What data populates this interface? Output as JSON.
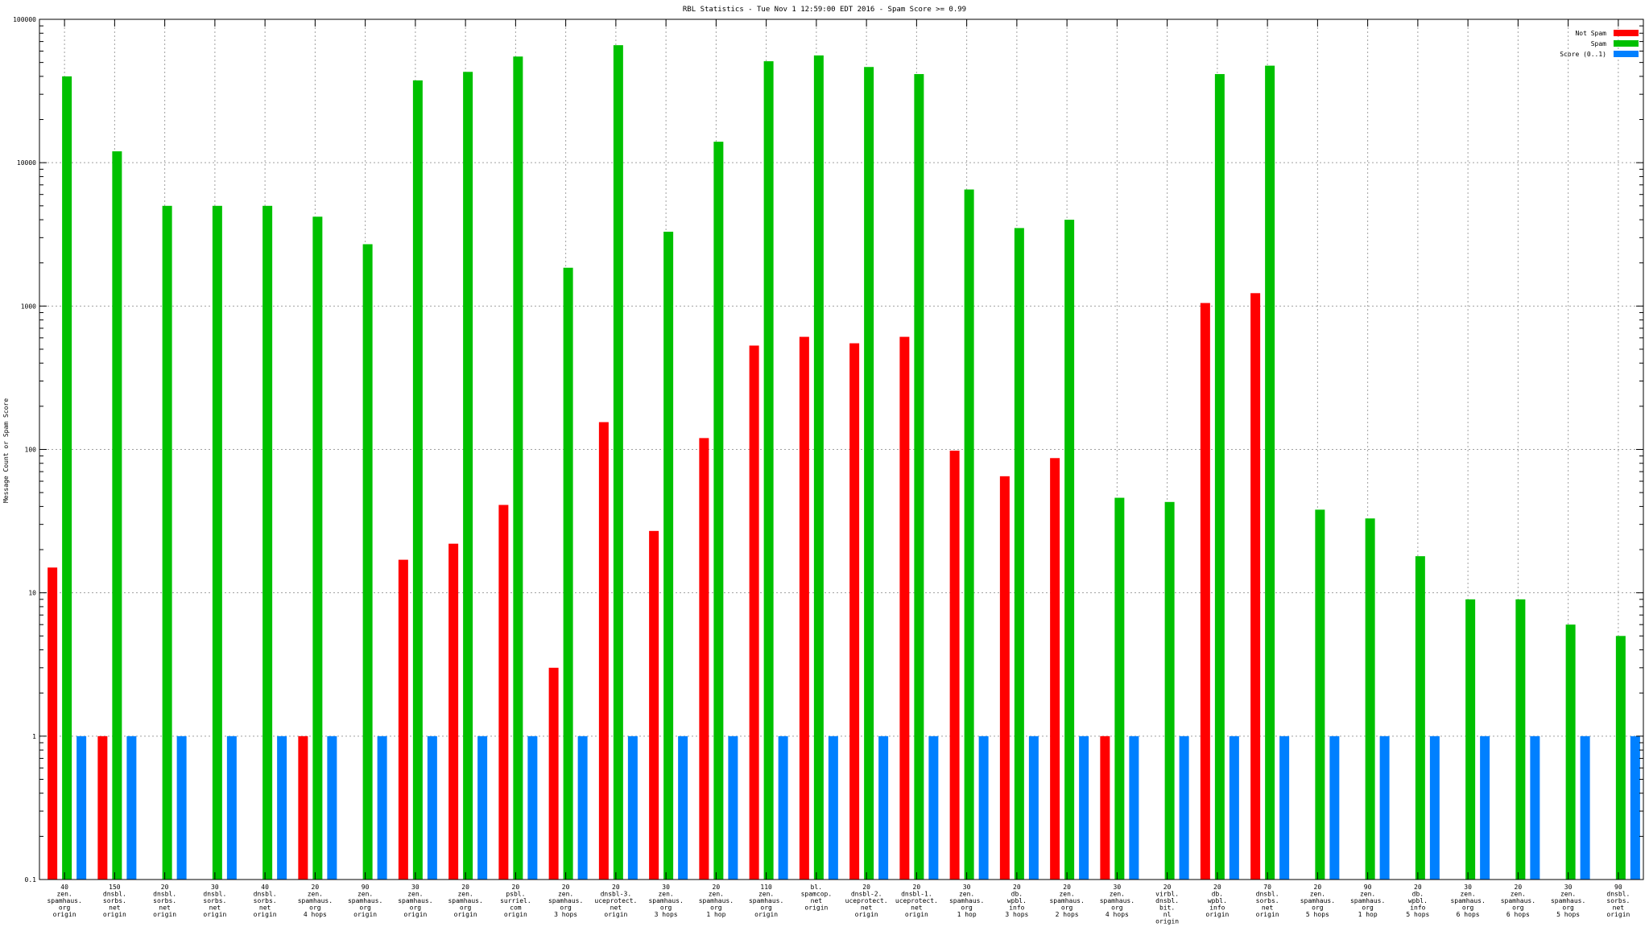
{
  "chart_data": {
    "type": "bar",
    "title": "RBL Statistics - Tue Nov  1 12:59:00 EDT 2016 - Spam Score >= 0.99",
    "ylabel": "Message Count or Spam Score",
    "xlabel": "",
    "yscale": "log",
    "ylim": [
      0.1,
      100000
    ],
    "yticks": [
      "0.1",
      "1",
      "10",
      "100",
      "1000",
      "10000",
      "100000"
    ],
    "grid": true,
    "legend_position": "top-right",
    "categories": [
      [
        "40",
        "zen.",
        "spamhaus.",
        "org",
        "origin"
      ],
      [
        "150",
        "dnsbl.",
        "sorbs.",
        "net",
        "origin"
      ],
      [
        "20",
        "dnsbl.",
        "sorbs.",
        "net",
        "origin"
      ],
      [
        "30",
        "dnsbl.",
        "sorbs.",
        "net",
        "origin"
      ],
      [
        "40",
        "dnsbl.",
        "sorbs.",
        "net",
        "origin"
      ],
      [
        "20",
        "zen.",
        "spamhaus.",
        "org",
        "4 hops"
      ],
      [
        "90",
        "zen.",
        "spamhaus.",
        "org",
        "origin"
      ],
      [
        "30",
        "zen.",
        "spamhaus.",
        "org",
        "origin"
      ],
      [
        "20",
        "zen.",
        "spamhaus.",
        "org",
        "origin"
      ],
      [
        "20",
        "psbl.",
        "surriel.",
        "com",
        "origin"
      ],
      [
        "20",
        "zen.",
        "spamhaus.",
        "org",
        "3 hops"
      ],
      [
        "20",
        "dnsbl-3.",
        "uceprotect.",
        "net",
        "origin"
      ],
      [
        "30",
        "zen.",
        "spamhaus.",
        "org",
        "3 hops"
      ],
      [
        "20",
        "zen.",
        "spamhaus.",
        "org",
        "1 hop"
      ],
      [
        "110",
        "zen.",
        "spamhaus.",
        "org",
        "origin"
      ],
      [
        "bl.",
        "spamcop.",
        "net",
        "origin"
      ],
      [
        "20",
        "dnsbl-2.",
        "uceprotect.",
        "net",
        "origin"
      ],
      [
        "20",
        "dnsbl-1.",
        "uceprotect.",
        "net",
        "origin"
      ],
      [
        "30",
        "zen.",
        "spamhaus.",
        "org",
        "1 hop"
      ],
      [
        "20",
        "db.",
        "wpbl.",
        "info",
        "3 hops"
      ],
      [
        "20",
        "zen.",
        "spamhaus.",
        "org",
        "2 hops"
      ],
      [
        "30",
        "zen.",
        "spamhaus.",
        "org",
        "4 hops"
      ],
      [
        "20",
        "virbl.",
        "dnsbl.",
        "bit.",
        "nl",
        "origin"
      ],
      [
        "20",
        "db.",
        "wpbl.",
        "info",
        "origin"
      ],
      [
        "70",
        "dnsbl.",
        "sorbs.",
        "net",
        "origin"
      ],
      [
        "20",
        "zen.",
        "spamhaus.",
        "org",
        "5 hops"
      ],
      [
        "90",
        "zen.",
        "spamhaus.",
        "org",
        "1 hop"
      ],
      [
        "20",
        "db.",
        "wpbl.",
        "info",
        "5 hops"
      ],
      [
        "30",
        "zen.",
        "spamhaus.",
        "org",
        "6 hops"
      ],
      [
        "20",
        "zen.",
        "spamhaus.",
        "org",
        "6 hops"
      ],
      [
        "30",
        "zen.",
        "spamhaus.",
        "org",
        "5 hops"
      ],
      [
        "90",
        "dnsbl.",
        "sorbs.",
        "net",
        "origin"
      ]
    ],
    "series": [
      {
        "name": "Not Spam",
        "color": "#ff0000",
        "values": [
          15,
          1,
          null,
          null,
          null,
          1,
          null,
          17,
          22,
          41,
          3,
          155,
          27,
          120,
          530,
          610,
          550,
          610,
          98,
          65,
          87,
          1,
          null,
          1050,
          1230,
          null,
          null,
          null,
          null,
          null,
          null,
          null
        ]
      },
      {
        "name": "Spam",
        "color": "#00c000",
        "values": [
          40000,
          12000,
          5000,
          5000,
          5000,
          4200,
          2700,
          37500,
          43000,
          55000,
          1850,
          66000,
          3300,
          14000,
          51000,
          56000,
          46500,
          41500,
          6500,
          3500,
          4000,
          46,
          43,
          41500,
          47500,
          38,
          33,
          18,
          9,
          9,
          6,
          5
        ]
      },
      {
        "name": "Score (0..1)",
        "color": "#0080ff",
        "values": [
          1,
          1,
          1,
          1,
          1,
          1,
          1,
          1,
          1,
          1,
          1,
          1,
          1,
          1,
          1,
          1,
          1,
          1,
          1,
          1,
          1,
          1,
          1,
          1,
          1,
          1,
          1,
          1,
          1,
          1,
          1,
          1
        ]
      }
    ]
  }
}
